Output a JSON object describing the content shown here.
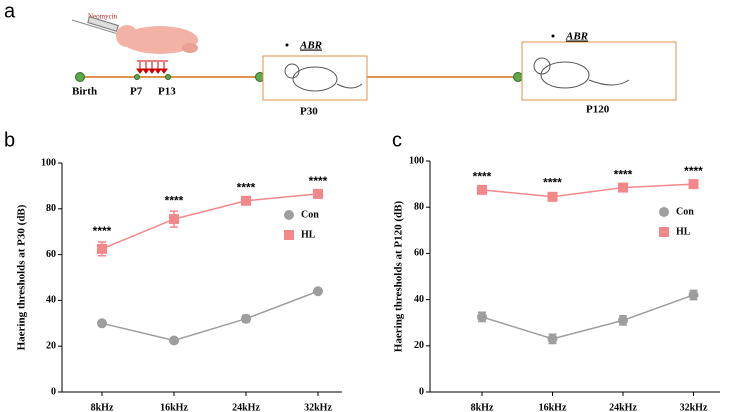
{
  "panel_labels": [
    "a",
    "b",
    "c"
  ],
  "timeline": {
    "drug": "Neomycin",
    "points": [
      "Birth",
      "P7",
      "P13"
    ],
    "tests": [
      {
        "label": "ABR",
        "age": "P30"
      },
      {
        "label": "ABR",
        "age": "P120"
      }
    ]
  },
  "chart_data": [
    {
      "type": "line",
      "ylabel": "Haering thresholds at P30 (dB)",
      "categories": [
        "8kHz",
        "16kHz",
        "24kHz",
        "32kHz"
      ],
      "ylim": [
        0,
        100
      ],
      "yticks": [
        0,
        20,
        40,
        60,
        80,
        100
      ],
      "significance": [
        "****",
        "****",
        "****",
        "****"
      ],
      "series": [
        {
          "name": "Con",
          "color": "#9e9e9e",
          "marker": "circle",
          "values": [
            30,
            22.5,
            32,
            44
          ],
          "errors": [
            1,
            1,
            1.5,
            1
          ]
        },
        {
          "name": "HL",
          "color": "#f4878a",
          "marker": "square",
          "values": [
            62.5,
            75.5,
            83.5,
            86.5
          ],
          "errors": [
            3,
            3.5,
            1,
            1
          ]
        }
      ]
    },
    {
      "type": "line",
      "ylabel": "Haering thresholds at P120 (dB)",
      "categories": [
        "8kHz",
        "16kHz",
        "24kHz",
        "32kHz"
      ],
      "ylim": [
        0,
        100
      ],
      "yticks": [
        0,
        20,
        40,
        60,
        80,
        100
      ],
      "significance": [
        "****",
        "****",
        "****",
        "****"
      ],
      "series": [
        {
          "name": "Con",
          "color": "#9e9e9e",
          "marker": "circle",
          "values": [
            32.5,
            23,
            31,
            42
          ],
          "errors": [
            2,
            2,
            2,
            2
          ]
        },
        {
          "name": "HL",
          "color": "#f4878a",
          "marker": "square",
          "values": [
            87.5,
            84.5,
            88.5,
            90
          ],
          "errors": [
            1,
            1.5,
            1,
            1
          ]
        }
      ]
    }
  ]
}
